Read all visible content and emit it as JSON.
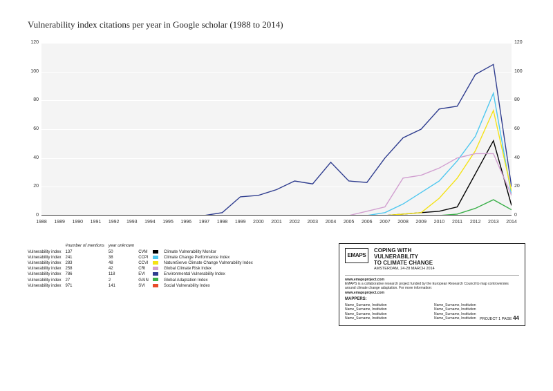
{
  "title": "Vulnerability index citations per year in Google scholar  (1988 to 2014)",
  "chart": {
    "type": "line",
    "background_color": "#f4f4f4",
    "grid_color": "#ffffff",
    "xlim": [
      1988,
      2014
    ],
    "ylim": [
      0,
      120
    ],
    "ytick_step": 20,
    "xlabels": [
      "1988",
      "1989",
      "1990",
      "1991",
      "1992",
      "1993",
      "1994",
      "1995",
      "1996",
      "1997",
      "1998",
      "1999",
      "2000",
      "2001",
      "2002",
      "2003",
      "2004",
      "2005",
      "2006",
      "2007",
      "2008",
      "2009",
      "2010",
      "2011",
      "2012",
      "2013",
      "2014"
    ],
    "yticks": [
      0,
      20,
      40,
      60,
      80,
      100,
      120
    ],
    "series": [
      {
        "name": "Climate Vulnerability Monitor",
        "code": "CVM",
        "color": "#000000",
        "y": [
          0,
          0,
          0,
          0,
          0,
          0,
          0,
          0,
          0,
          0,
          0,
          0,
          0,
          0,
          0,
          0,
          0,
          0,
          0,
          0,
          1,
          2,
          3,
          6,
          29,
          52,
          7
        ]
      },
      {
        "name": "Climate Change Performance Index",
        "code": "CCPI",
        "color": "#4ec7ef",
        "y": [
          0,
          0,
          0,
          0,
          0,
          0,
          0,
          0,
          0,
          0,
          0,
          0,
          0,
          0,
          0,
          0,
          0,
          0,
          0,
          2,
          8,
          16,
          24,
          38,
          55,
          85,
          14
        ]
      },
      {
        "name": "NatureServe Climate Change Vulnerability Index",
        "code": "CCVI",
        "color": "#f4e215",
        "y": [
          0,
          0,
          0,
          0,
          0,
          0,
          0,
          0,
          0,
          0,
          0,
          0,
          0,
          0,
          0,
          0,
          0,
          0,
          0,
          0,
          1,
          2,
          12,
          26,
          45,
          73,
          17
        ]
      },
      {
        "name": "Global Climate Risk Index",
        "code": "CRI",
        "color": "#d19fd0",
        "y": [
          0,
          0,
          0,
          0,
          0,
          0,
          0,
          0,
          0,
          0,
          0,
          0,
          0,
          0,
          0,
          0,
          0,
          0,
          3,
          6,
          26,
          28,
          33,
          40,
          43,
          43,
          14
        ]
      },
      {
        "name": "Environmental Vulnerability Index",
        "code": "EVI",
        "color": "#2f3d8f",
        "y": [
          0,
          0,
          0,
          0,
          0,
          0,
          0,
          0,
          0,
          0,
          2,
          13,
          14,
          18,
          24,
          22,
          37,
          24,
          23,
          40,
          54,
          60,
          74,
          76,
          98,
          105,
          20
        ]
      },
      {
        "name": "Global Adaptation Index",
        "code": "GAIN",
        "color": "#3bb04a",
        "y": [
          0,
          0,
          0,
          0,
          0,
          0,
          0,
          0,
          0,
          0,
          0,
          0,
          0,
          0,
          0,
          0,
          0,
          0,
          0,
          0,
          0,
          0,
          0,
          1,
          5,
          11,
          4
        ]
      },
      {
        "name": "Social Vulnerability Index",
        "code": "SVI",
        "color": "#e84c2b",
        "y": [
          0,
          0,
          0,
          0,
          0,
          0,
          0,
          0,
          0,
          0,
          0,
          0,
          0,
          0,
          0,
          0,
          0,
          0,
          0,
          0,
          0,
          0,
          0,
          0,
          0,
          0,
          0
        ]
      }
    ]
  },
  "table": {
    "header_mentions": "#number of mentions",
    "header_year_unknown": "year unknown",
    "rows": [
      {
        "label": "Vulnerability index",
        "mentions": "137",
        "unknown": "50",
        "code": "CVM"
      },
      {
        "label": "Vulnerability index",
        "mentions": "241",
        "unknown": "38",
        "code": "CCPI"
      },
      {
        "label": "Vulnerability index",
        "mentions": "283",
        "unknown": "48",
        "code": "CCVI"
      },
      {
        "label": "Vulnerability index",
        "mentions": "258",
        "unknown": "42",
        "code": "CRI"
      },
      {
        "label": "Vulnerability index",
        "mentions": "786",
        "unknown": "118",
        "code": "EVI"
      },
      {
        "label": "Vulnerability index",
        "mentions": "27",
        "unknown": "2",
        "code": "GAIN"
      },
      {
        "label": "Vulnerability index",
        "mentions": "971",
        "unknown": "141",
        "code": "SVI"
      }
    ]
  },
  "infobox": {
    "logo": "EMAPS",
    "title_l1": "COPING WITH",
    "title_l2": "VULNERABILITY",
    "title_l3": "TO CLIMATE CHANGE",
    "sub": "AMSTERDAM, 24-28 MARCH 2014",
    "site": "www.emapsproject.com",
    "desc": "EMAPS is a collaborative research project funded by the European Research Council to map controversies around climate change adaptation. For more information:",
    "site2": "www.emapsproject.com",
    "mappers_label": "MAPPERS:",
    "mappers": [
      "Name_Surname, Institution",
      "Name_Surname, Institution",
      "Name_Surname, Institution",
      "Name_Surname, Institution",
      "Name_Surname, Institution",
      "Name_Surname, Institution",
      "Name_Surname, Institution",
      "Name_Surname, Institution"
    ],
    "page_label": "PROJECT 1 PAGE",
    "page_num": "44"
  }
}
